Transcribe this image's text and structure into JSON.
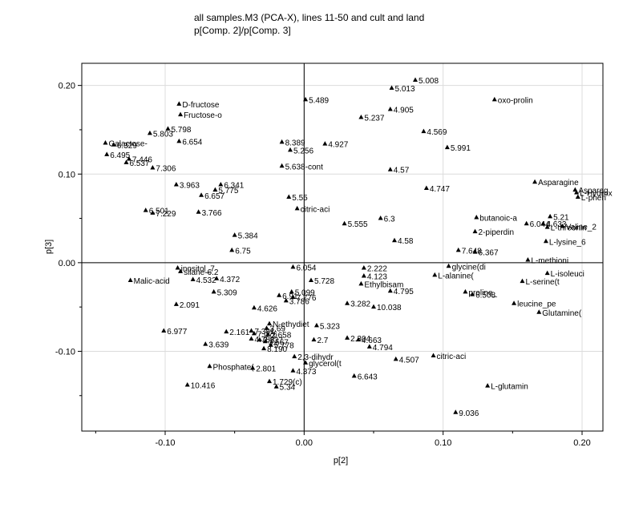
{
  "chart_data": {
    "type": "scatter",
    "title": "all samples.M3 (PCA-X), lines 11-50 and cult and land",
    "subtitle": "p[Comp. 2]/p[Comp. 3]",
    "xlabel": "p[2]",
    "ylabel": "p[3]",
    "xlim": [
      -0.16,
      0.215
    ],
    "ylim": [
      -0.19,
      0.225
    ],
    "xticks": [
      {
        "value": -0.1,
        "label": "-0.10"
      },
      {
        "value": 0.0,
        "label": "0.00"
      },
      {
        "value": 0.1,
        "label": "0.10"
      },
      {
        "value": 0.2,
        "label": "0.20"
      }
    ],
    "xminor": [
      -0.15,
      -0.05,
      0.05,
      0.15
    ],
    "yticks": [
      {
        "value": -0.1,
        "label": "-0.10"
      },
      {
        "value": 0.0,
        "label": "0.00"
      },
      {
        "value": 0.1,
        "label": "0.10"
      },
      {
        "value": 0.2,
        "label": "0.20"
      }
    ],
    "yminor": [
      -0.15,
      -0.05,
      0.05,
      0.15
    ],
    "grid": true,
    "marker": "triangle",
    "points": [
      {
        "x": 0.08,
        "y": 0.206,
        "label": "5.008"
      },
      {
        "x": 0.063,
        "y": 0.197,
        "label": "5.013"
      },
      {
        "x": 0.001,
        "y": 0.184,
        "label": "5.489"
      },
      {
        "x": 0.137,
        "y": 0.184,
        "label": "oxo-prolin"
      },
      {
        "x": 0.062,
        "y": 0.173,
        "label": "4.905"
      },
      {
        "x": 0.041,
        "y": 0.164,
        "label": "5.237"
      },
      {
        "x": -0.09,
        "y": 0.179,
        "label": "D-fructose"
      },
      {
        "x": -0.089,
        "y": 0.167,
        "label": "Fructose-o"
      },
      {
        "x": -0.098,
        "y": 0.151,
        "label": "5.798"
      },
      {
        "x": -0.111,
        "y": 0.146,
        "label": "5.803"
      },
      {
        "x": -0.09,
        "y": 0.137,
        "label": "6.654"
      },
      {
        "x": 0.086,
        "y": 0.148,
        "label": "4.569"
      },
      {
        "x": -0.143,
        "y": 0.135,
        "label": "Galactose-"
      },
      {
        "x": -0.137,
        "y": 0.133,
        "label": "6.329"
      },
      {
        "x": -0.016,
        "y": 0.136,
        "label": "8.389"
      },
      {
        "x": 0.015,
        "y": 0.134,
        "label": "4.927"
      },
      {
        "x": -0.01,
        "y": 0.127,
        "label": "5.256"
      },
      {
        "x": 0.103,
        "y": 0.13,
        "label": "5.991"
      },
      {
        "x": -0.142,
        "y": 0.122,
        "label": "6.495"
      },
      {
        "x": -0.126,
        "y": 0.117,
        "label": "7.446"
      },
      {
        "x": -0.128,
        "y": 0.113,
        "label": "6.537"
      },
      {
        "x": -0.109,
        "y": 0.107,
        "label": "7.306"
      },
      {
        "x": -0.016,
        "y": 0.109,
        "label": "5.638-cont"
      },
      {
        "x": 0.062,
        "y": 0.105,
        "label": "4.57"
      },
      {
        "x": -0.092,
        "y": 0.088,
        "label": "3.963"
      },
      {
        "x": -0.06,
        "y": 0.088,
        "label": "6.341"
      },
      {
        "x": -0.064,
        "y": 0.082,
        "label": "5.775"
      },
      {
        "x": -0.074,
        "y": 0.076,
        "label": "6.657"
      },
      {
        "x": 0.088,
        "y": 0.084,
        "label": "4.747"
      },
      {
        "x": 0.166,
        "y": 0.091,
        "label": "Asparagine"
      },
      {
        "x": 0.195,
        "y": 0.082,
        "label": "Asparag"
      },
      {
        "x": 0.196,
        "y": 0.079,
        "label": "L-Hydrox"
      },
      {
        "x": 0.197,
        "y": 0.074,
        "label": "L-phen"
      },
      {
        "x": -0.011,
        "y": 0.074,
        "label": "5.55"
      },
      {
        "x": -0.005,
        "y": 0.061,
        "label": "citric-aci"
      },
      {
        "x": -0.114,
        "y": 0.059,
        "label": "6.501"
      },
      {
        "x": -0.109,
        "y": 0.056,
        "label": "7.229"
      },
      {
        "x": -0.076,
        "y": 0.057,
        "label": "3.766"
      },
      {
        "x": 0.124,
        "y": 0.051,
        "label": "butanoic-a"
      },
      {
        "x": 0.055,
        "y": 0.05,
        "label": "6.3"
      },
      {
        "x": 0.177,
        "y": 0.052,
        "label": "5.21"
      },
      {
        "x": 0.16,
        "y": 0.044,
        "label": "6.044"
      },
      {
        "x": 0.172,
        "y": 0.044,
        "label": "4.633"
      },
      {
        "x": 0.186,
        "y": 0.041,
        "label": "Valine_2"
      },
      {
        "x": 0.175,
        "y": 0.04,
        "label": "L-threonin"
      },
      {
        "x": 0.029,
        "y": 0.044,
        "label": "5.555"
      },
      {
        "x": 0.123,
        "y": 0.035,
        "label": "2-piperdin"
      },
      {
        "x": -0.05,
        "y": 0.031,
        "label": "5.384"
      },
      {
        "x": 0.065,
        "y": 0.025,
        "label": "4.58"
      },
      {
        "x": 0.174,
        "y": 0.024,
        "label": "L-lysine_6"
      },
      {
        "x": 0.111,
        "y": 0.014,
        "label": "7.648"
      },
      {
        "x": 0.123,
        "y": 0.012,
        "label": "6.367"
      },
      {
        "x": -0.052,
        "y": 0.014,
        "label": "6.75"
      },
      {
        "x": 0.161,
        "y": 0.003,
        "label": "L-methioni"
      },
      {
        "x": -0.091,
        "y": -0.006,
        "label": "inositol_7"
      },
      {
        "x": -0.008,
        "y": -0.005,
        "label": "6.054"
      },
      {
        "x": 0.043,
        "y": -0.006,
        "label": "2.222"
      },
      {
        "x": 0.104,
        "y": -0.004,
        "label": "glycine(di"
      },
      {
        "x": -0.089,
        "y": -0.01,
        "label": "silane-6.2"
      },
      {
        "x": 0.043,
        "y": -0.015,
        "label": "4.123"
      },
      {
        "x": 0.094,
        "y": -0.014,
        "label": "L-alanine("
      },
      {
        "x": 0.175,
        "y": -0.012,
        "label": "L-isoleuci"
      },
      {
        "x": -0.125,
        "y": -0.02,
        "label": "Malic-acid"
      },
      {
        "x": -0.08,
        "y": -0.019,
        "label": "4.532"
      },
      {
        "x": -0.063,
        "y": -0.018,
        "label": "4.372"
      },
      {
        "x": 0.005,
        "y": -0.02,
        "label": "5.728"
      },
      {
        "x": 0.041,
        "y": -0.024,
        "label": "Ethylbisam"
      },
      {
        "x": 0.157,
        "y": -0.021,
        "label": "L-serine(t"
      },
      {
        "x": -0.065,
        "y": -0.033,
        "label": "5.309"
      },
      {
        "x": -0.009,
        "y": -0.033,
        "label": "5.099"
      },
      {
        "x": -0.018,
        "y": -0.037,
        "label": "6.91"
      },
      {
        "x": -0.008,
        "y": -0.039,
        "label": "7.776"
      },
      {
        "x": -0.013,
        "y": -0.043,
        "label": "3.786"
      },
      {
        "x": 0.062,
        "y": -0.032,
        "label": "4.795"
      },
      {
        "x": 0.116,
        "y": -0.033,
        "label": "proline_"
      },
      {
        "x": 0.121,
        "y": -0.036,
        "label": "6.508"
      },
      {
        "x": -0.092,
        "y": -0.047,
        "label": "2.091"
      },
      {
        "x": 0.031,
        "y": -0.046,
        "label": "3.282"
      },
      {
        "x": 0.05,
        "y": -0.05,
        "label": "10.038"
      },
      {
        "x": 0.151,
        "y": -0.046,
        "label": "leucine_pe"
      },
      {
        "x": -0.036,
        "y": -0.051,
        "label": "4.626"
      },
      {
        "x": 0.169,
        "y": -0.056,
        "label": "Glutamine("
      },
      {
        "x": -0.025,
        "y": -0.069,
        "label": "N-ethydiet"
      },
      {
        "x": 0.009,
        "y": -0.071,
        "label": "5.323"
      },
      {
        "x": -0.027,
        "y": -0.074,
        "label": "3.69"
      },
      {
        "x": -0.101,
        "y": -0.077,
        "label": "6.977"
      },
      {
        "x": -0.056,
        "y": -0.078,
        "label": "2.161"
      },
      {
        "x": -0.038,
        "y": -0.077,
        "label": "7.381"
      },
      {
        "x": -0.036,
        "y": -0.08,
        "label": "7.076"
      },
      {
        "x": -0.026,
        "y": -0.081,
        "label": "2.658"
      },
      {
        "x": -0.038,
        "y": -0.086,
        "label": "4.788"
      },
      {
        "x": -0.032,
        "y": -0.087,
        "label": "2.237"
      },
      {
        "x": -0.028,
        "y": -0.089,
        "label": "3.567"
      },
      {
        "x": 0.031,
        "y": -0.085,
        "label": "2.304"
      },
      {
        "x": 0.039,
        "y": -0.087,
        "label": "4.663"
      },
      {
        "x": 0.007,
        "y": -0.087,
        "label": "2.7"
      },
      {
        "x": -0.024,
        "y": -0.093,
        "label": "5.778"
      },
      {
        "x": -0.029,
        "y": -0.097,
        "label": "8.190"
      },
      {
        "x": -0.071,
        "y": -0.092,
        "label": "3.639"
      },
      {
        "x": 0.047,
        "y": -0.095,
        "label": "4.794"
      },
      {
        "x": -0.007,
        "y": -0.106,
        "label": "2,3-dihydr"
      },
      {
        "x": 0.093,
        "y": -0.105,
        "label": "citric-aci"
      },
      {
        "x": 0.066,
        "y": -0.109,
        "label": "4.507"
      },
      {
        "x": 0.001,
        "y": -0.113,
        "label": "glycerol(t"
      },
      {
        "x": -0.068,
        "y": -0.117,
        "label": "Phosphate("
      },
      {
        "x": -0.037,
        "y": -0.119,
        "label": "2.801"
      },
      {
        "x": -0.008,
        "y": -0.122,
        "label": "4.373"
      },
      {
        "x": 0.036,
        "y": -0.128,
        "label": "6.643"
      },
      {
        "x": -0.084,
        "y": -0.138,
        "label": "10.416"
      },
      {
        "x": -0.025,
        "y": -0.134,
        "label": "1.729(c)"
      },
      {
        "x": -0.02,
        "y": -0.14,
        "label": "5.34"
      },
      {
        "x": 0.132,
        "y": -0.139,
        "label": "L-glutamin"
      },
      {
        "x": 0.109,
        "y": -0.169,
        "label": "9.036"
      }
    ]
  }
}
